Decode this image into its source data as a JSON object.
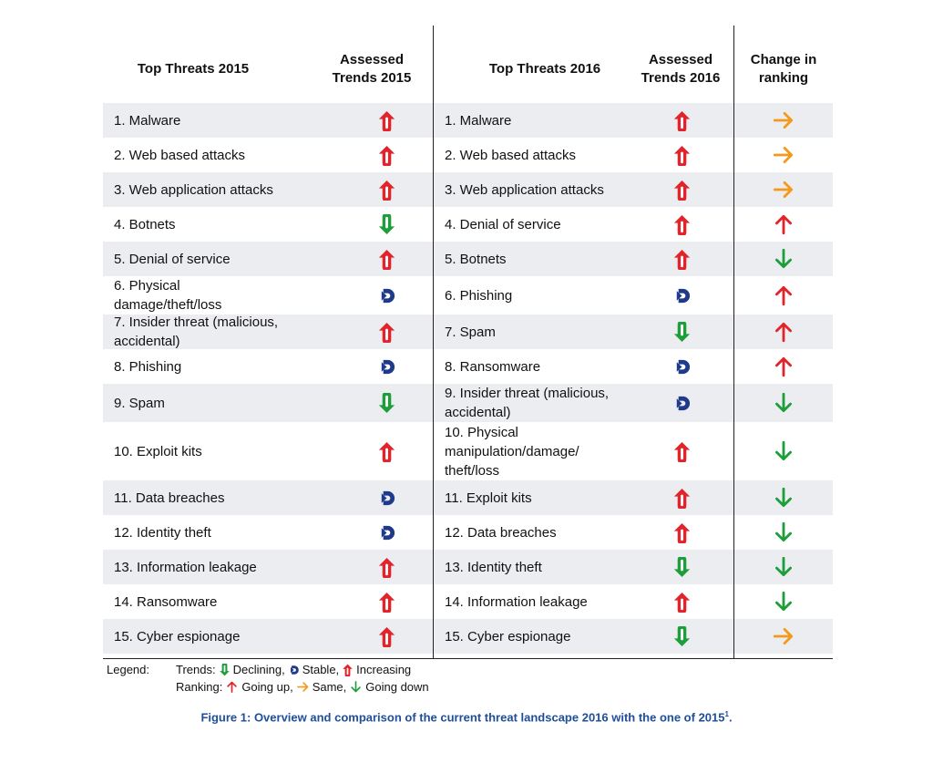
{
  "headers": {
    "top_threats_2015": "Top Threats 2015",
    "assessed_trends_2015": "Assessed\nTrends 2015",
    "top_threats_2016": "Top Threats 2016",
    "assessed_trends_2016": "Assessed\nTrends 2016",
    "change_in_ranking": "Change in\nranking"
  },
  "rows": [
    {
      "t2015": "1. Malware",
      "trend2015": "increasing",
      "t2016": "1. Malware",
      "trend2016": "increasing",
      "change": "same"
    },
    {
      "t2015": "2. Web based attacks",
      "trend2015": "increasing",
      "t2016": "2. Web based attacks",
      "trend2016": "increasing",
      "change": "same"
    },
    {
      "t2015": "3. Web application attacks",
      "trend2015": "increasing",
      "t2016": "3. Web application attacks",
      "trend2016": "increasing",
      "change": "same"
    },
    {
      "t2015": "4. Botnets",
      "trend2015": "declining",
      "t2016": "4. Denial of service",
      "trend2016": "increasing",
      "change": "up"
    },
    {
      "t2015": "5. Denial of service",
      "trend2015": "increasing",
      "t2016": "5. Botnets",
      "trend2016": "increasing",
      "change": "down"
    },
    {
      "t2015": "6. Physical\ndamage/theft/loss",
      "trend2015": "stable",
      "t2016": "6. Phishing",
      "trend2016": "stable",
      "change": "up"
    },
    {
      "t2015": "7. Insider threat (malicious,\n   accidental)",
      "trend2015": "increasing",
      "t2016": "7. Spam",
      "trend2016": "declining",
      "change": "up"
    },
    {
      "t2015": "8. Phishing",
      "trend2015": "stable",
      "t2016": "8. Ransomware",
      "trend2016": "stable",
      "change": "up"
    },
    {
      "t2015": "9. Spam",
      "trend2015": "declining",
      "t2016": "9. Insider threat (malicious,\naccidental)",
      "trend2016": "stable",
      "change": "down"
    },
    {
      "t2015": "10. Exploit kits",
      "trend2015": "increasing",
      "t2016": "10. Physical\nmanipulation/damage/\ntheft/loss",
      "trend2016": "increasing",
      "change": "down"
    },
    {
      "t2015": "11. Data breaches",
      "trend2015": "stable",
      "t2016": "11. Exploit kits",
      "trend2016": "increasing",
      "change": "down"
    },
    {
      "t2015": "12. Identity theft",
      "trend2015": "stable",
      "t2016": "12. Data breaches",
      "trend2016": "increasing",
      "change": "down"
    },
    {
      "t2015": "13. Information leakage",
      "trend2015": "increasing",
      "t2016": "13. Identity theft",
      "trend2016": "declining",
      "change": "down"
    },
    {
      "t2015": "14. Ransomware",
      "trend2015": "increasing",
      "t2016": "14. Information leakage",
      "trend2016": "increasing",
      "change": "down"
    },
    {
      "t2015": "15. Cyber espionage",
      "trend2015": "increasing",
      "t2016": "15. Cyber espionage",
      "trend2016": "declining",
      "change": "same"
    }
  ],
  "legend": {
    "label": "Legend:",
    "trends_prefix": "Trends:",
    "declining": "Declining,",
    "stable": "Stable,",
    "increasing": "Increasing",
    "ranking_prefix": "Ranking:",
    "going_up": "Going up,",
    "same": "Same,",
    "going_down": "Going down"
  },
  "caption": {
    "text": "Figure 1: Overview and comparison of the current threat landscape 2016 with the one of 2015",
    "footnote_mark": "1",
    "end": "."
  },
  "colors": {
    "increasing": "#e3232a",
    "declining": "#1e9e3a",
    "stable": "#1f3a8a",
    "arrow_up": "#e3232a",
    "arrow_same": "#f39a1c",
    "arrow_down": "#1e9e3a",
    "caption": "#1f4e9a",
    "row_shade": "#ebedf1"
  }
}
